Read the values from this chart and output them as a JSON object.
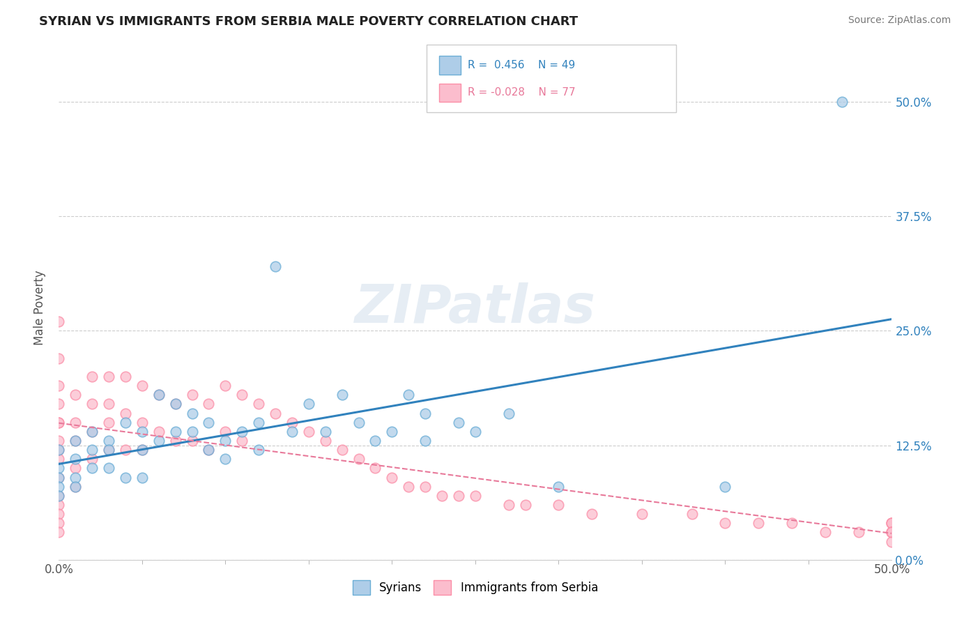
{
  "title": "SYRIAN VS IMMIGRANTS FROM SERBIA MALE POVERTY CORRELATION CHART",
  "source": "Source: ZipAtlas.com",
  "watermark": "ZIPatlas",
  "ylabel": "Male Poverty",
  "xlim": [
    0.0,
    0.5
  ],
  "ylim": [
    0.0,
    0.55
  ],
  "ytick_values": [
    0.0,
    0.125,
    0.25,
    0.375,
    0.5
  ],
  "right_ytick_labels": [
    "0.0%",
    "12.5%",
    "25.0%",
    "37.5%",
    "50.0%"
  ],
  "color_syrian": "#6baed6",
  "color_serbia": "#fb8fa8",
  "color_syrian_fill": "#aecde8",
  "color_serbia_fill": "#fbbdcd",
  "line_color_syrian": "#3182bd",
  "line_color_serbia": "#e8799a",
  "legend_label1": "Syrians",
  "legend_label2": "Immigrants from Serbia",
  "background_color": "#ffffff",
  "grid_color": "#cccccc",
  "syrian_x": [
    0.0,
    0.0,
    0.0,
    0.0,
    0.0,
    0.01,
    0.01,
    0.01,
    0.01,
    0.02,
    0.02,
    0.02,
    0.03,
    0.03,
    0.03,
    0.04,
    0.04,
    0.05,
    0.05,
    0.05,
    0.06,
    0.06,
    0.07,
    0.07,
    0.08,
    0.08,
    0.09,
    0.09,
    0.1,
    0.1,
    0.11,
    0.12,
    0.12,
    0.13,
    0.14,
    0.15,
    0.16,
    0.17,
    0.18,
    0.19,
    0.2,
    0.21,
    0.22,
    0.22,
    0.24,
    0.25,
    0.27,
    0.3,
    0.4,
    0.47
  ],
  "syrian_y": [
    0.1,
    0.12,
    0.09,
    0.08,
    0.07,
    0.13,
    0.11,
    0.09,
    0.08,
    0.14,
    0.12,
    0.1,
    0.13,
    0.12,
    0.1,
    0.15,
    0.09,
    0.14,
    0.12,
    0.09,
    0.18,
    0.13,
    0.17,
    0.14,
    0.16,
    0.14,
    0.15,
    0.12,
    0.13,
    0.11,
    0.14,
    0.15,
    0.12,
    0.32,
    0.14,
    0.17,
    0.14,
    0.18,
    0.15,
    0.13,
    0.14,
    0.18,
    0.16,
    0.13,
    0.15,
    0.14,
    0.16,
    0.08,
    0.08,
    0.5
  ],
  "serbia_x": [
    0.0,
    0.0,
    0.0,
    0.0,
    0.0,
    0.0,
    0.0,
    0.0,
    0.0,
    0.0,
    0.0,
    0.0,
    0.0,
    0.0,
    0.0,
    0.01,
    0.01,
    0.01,
    0.01,
    0.01,
    0.02,
    0.02,
    0.02,
    0.02,
    0.03,
    0.03,
    0.03,
    0.03,
    0.04,
    0.04,
    0.04,
    0.05,
    0.05,
    0.05,
    0.06,
    0.06,
    0.07,
    0.07,
    0.08,
    0.08,
    0.09,
    0.09,
    0.1,
    0.1,
    0.11,
    0.11,
    0.12,
    0.13,
    0.14,
    0.15,
    0.16,
    0.17,
    0.18,
    0.19,
    0.2,
    0.21,
    0.22,
    0.23,
    0.24,
    0.25,
    0.27,
    0.28,
    0.3,
    0.32,
    0.35,
    0.38,
    0.4,
    0.42,
    0.44,
    0.46,
    0.48,
    0.5,
    0.5,
    0.5,
    0.5,
    0.5,
    0.5,
    0.5
  ],
  "serbia_y": [
    0.26,
    0.22,
    0.19,
    0.17,
    0.15,
    0.13,
    0.11,
    0.09,
    0.07,
    0.06,
    0.05,
    0.04,
    0.03,
    0.15,
    0.12,
    0.18,
    0.15,
    0.13,
    0.1,
    0.08,
    0.2,
    0.17,
    0.14,
    0.11,
    0.2,
    0.17,
    0.15,
    0.12,
    0.2,
    0.16,
    0.12,
    0.19,
    0.15,
    0.12,
    0.18,
    0.14,
    0.17,
    0.13,
    0.18,
    0.13,
    0.17,
    0.12,
    0.19,
    0.14,
    0.18,
    0.13,
    0.17,
    0.16,
    0.15,
    0.14,
    0.13,
    0.12,
    0.11,
    0.1,
    0.09,
    0.08,
    0.08,
    0.07,
    0.07,
    0.07,
    0.06,
    0.06,
    0.06,
    0.05,
    0.05,
    0.05,
    0.04,
    0.04,
    0.04,
    0.03,
    0.03,
    0.04,
    0.04,
    0.04,
    0.03,
    0.03,
    0.03,
    0.02
  ]
}
